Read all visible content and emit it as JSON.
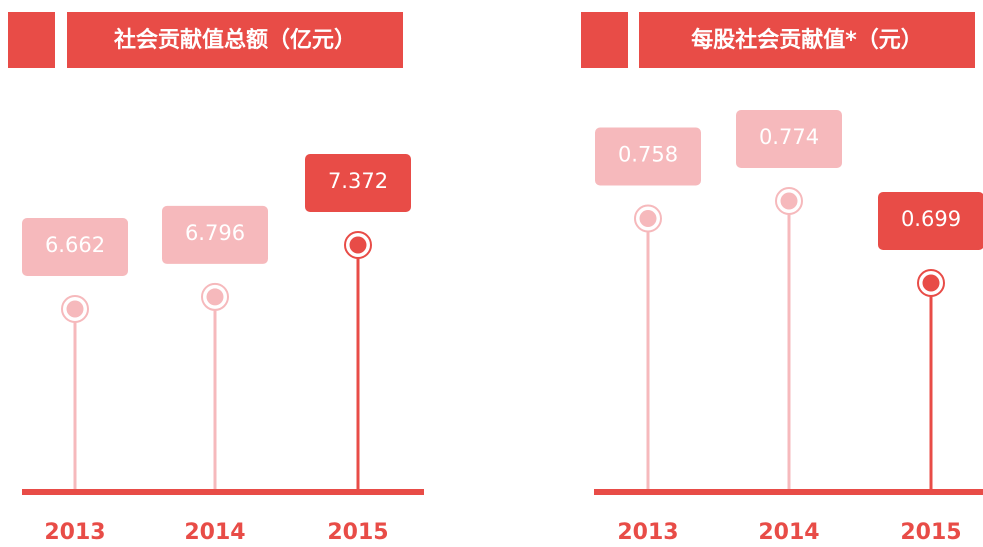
{
  "chart_data": [
    {
      "type": "lollipop",
      "title": "社会贡献值总额（亿元）",
      "categories": [
        "2013",
        "2014",
        "2015"
      ],
      "values": [
        6.662,
        6.796,
        7.372
      ],
      "colors": [
        "#f6b9bc",
        "#f6b9bc",
        "#e84c47"
      ]
    },
    {
      "type": "lollipop",
      "title": "每股社会贡献值*（元）",
      "categories": [
        "2013",
        "2014",
        "2015"
      ],
      "values": [
        0.758,
        0.774,
        0.699
      ],
      "colors": [
        "#f6b9bc",
        "#f6b9bc",
        "#e84c47"
      ]
    }
  ]
}
